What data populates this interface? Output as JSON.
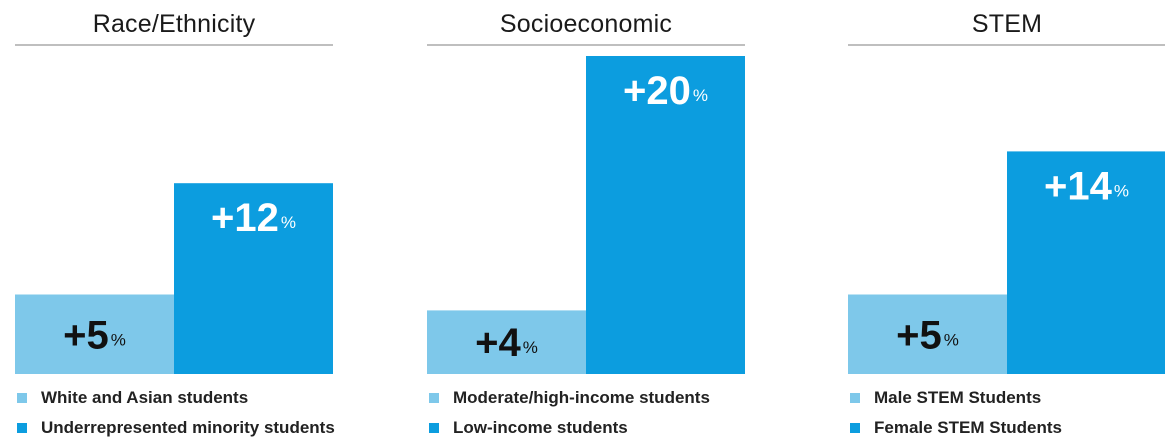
{
  "colors": {
    "light": "#7ec8ea",
    "dark": "#0c9ddf",
    "title": "#1a1a1a",
    "rule": "#bfbfbf"
  },
  "chart_data": [
    {
      "type": "bar",
      "title": "Race/Ethnicity",
      "categories": [
        "White and Asian students",
        "Underrepresented minority students"
      ],
      "values": [
        5,
        12
      ],
      "value_labels": [
        "+5",
        "+12"
      ],
      "unit": "%",
      "ylim": [
        0,
        20
      ],
      "grid": false,
      "legend": "bottom"
    },
    {
      "type": "bar",
      "title": "Socioeconomic",
      "categories": [
        "Moderate/high-income students",
        "Low-income students"
      ],
      "values": [
        4,
        20
      ],
      "value_labels": [
        "+4",
        "+20"
      ],
      "unit": "%",
      "ylim": [
        0,
        20
      ],
      "grid": false,
      "legend": "bottom"
    },
    {
      "type": "bar",
      "title": "STEM",
      "categories": [
        "Male STEM Students",
        "Female STEM Students"
      ],
      "values": [
        5,
        14
      ],
      "value_labels": [
        "+5",
        "+14"
      ],
      "unit": "%",
      "ylim": [
        0,
        20
      ],
      "grid": false,
      "legend": "bottom"
    }
  ]
}
